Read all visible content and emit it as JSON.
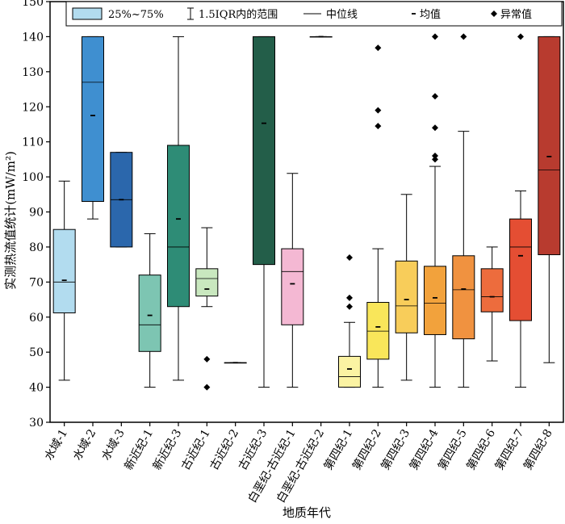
{
  "chart_data": {
    "type": "box",
    "xlabel": "地质年代",
    "ylabel": "实测热流值统计(mW/m²)",
    "ylim": [
      30,
      150
    ],
    "yticks": [
      30,
      40,
      50,
      60,
      70,
      80,
      90,
      100,
      110,
      120,
      130,
      140,
      150
    ],
    "grid": false,
    "legend": {
      "placement": "top",
      "items": [
        {
          "symbol": "box",
          "label": "25%~75%"
        },
        {
          "symbol": "whisker",
          "label": "1.5IQR内的范围"
        },
        {
          "symbol": "line",
          "label": "中位线"
        },
        {
          "symbol": "dash",
          "label": "均值"
        },
        {
          "symbol": "diamond",
          "label": "异常值"
        }
      ]
    },
    "categories": [
      {
        "name": "水域-1",
        "color": "#b2dcef",
        "q1": 61.2,
        "median": 70.0,
        "q3": 85.0,
        "whisker_low": 42.0,
        "whisker_high": 98.8,
        "mean": 70.5,
        "outliers": []
      },
      {
        "name": "水域-2",
        "color": "#3f8fd0",
        "q1": 93.0,
        "median": 127.0,
        "q3": 140.0,
        "whisker_low": 88.0,
        "whisker_high": 140.0,
        "mean": 117.5,
        "outliers": []
      },
      {
        "name": "水域-3",
        "color": "#2b67ac",
        "q1": 80.0,
        "median": 93.5,
        "q3": 107.0,
        "whisker_low": 80.0,
        "whisker_high": 107.0,
        "mean": 93.5,
        "outliers": []
      },
      {
        "name": "新近纪-1",
        "color": "#7dc5b2",
        "q1": 50.2,
        "median": 57.8,
        "q3": 72.0,
        "whisker_low": 40.0,
        "whisker_high": 83.8,
        "mean": 60.5,
        "outliers": []
      },
      {
        "name": "新近纪-3",
        "color": "#2e8c76",
        "q1": 63.0,
        "median": 80.0,
        "q3": 109.0,
        "whisker_low": 42.0,
        "whisker_high": 140.0,
        "mean": 88.0,
        "outliers": []
      },
      {
        "name": "古近纪-1",
        "color": "#c9e8bf",
        "q1": 66.0,
        "median": 71.0,
        "q3": 73.8,
        "whisker_low": 63.0,
        "whisker_high": 85.5,
        "mean": 68.0,
        "outliers": [
          48.0,
          40.0
        ]
      },
      {
        "name": "古近纪-2",
        "color": "#888888",
        "q1": 47.0,
        "median": 47.0,
        "q3": 47.0,
        "whisker_low": 47.0,
        "whisker_high": 47.0,
        "mean": 47.0,
        "outliers": []
      },
      {
        "name": "古近纪-3",
        "color": "#235e49",
        "q1": 75.0,
        "median": 140.0,
        "q3": 140.0,
        "whisker_low": 40.0,
        "whisker_high": 140.0,
        "mean": 115.3,
        "outliers": []
      },
      {
        "name": "白垩纪-古近纪-1",
        "color": "#f4b8d3",
        "q1": 57.8,
        "median": 73.0,
        "q3": 79.5,
        "whisker_low": 40.0,
        "whisker_high": 101.0,
        "mean": 69.5,
        "outliers": []
      },
      {
        "name": "白垩纪-古近纪-2",
        "color": "#888888",
        "q1": 140.0,
        "median": 140.0,
        "q3": 140.0,
        "whisker_low": 140.0,
        "whisker_high": 140.0,
        "mean": 140.0,
        "outliers": []
      },
      {
        "name": "第四纪-1",
        "color": "#fbf3a3",
        "q1": 40.0,
        "median": 43.0,
        "q3": 48.8,
        "whisker_low": 40.0,
        "whisker_high": 58.5,
        "mean": 45.2,
        "outliers": [
          77.0,
          65.5,
          63.0
        ]
      },
      {
        "name": "第四纪-2",
        "color": "#f9e65a",
        "q1": 48.0,
        "median": 56.0,
        "q3": 64.2,
        "whisker_low": 40.0,
        "whisker_high": 79.5,
        "mean": 57.2,
        "outliers": [
          136.8,
          119.0,
          114.5
        ]
      },
      {
        "name": "第四纪-3",
        "color": "#f8cd5a",
        "q1": 55.5,
        "median": 63.2,
        "q3": 76.0,
        "whisker_low": 42.0,
        "whisker_high": 95.0,
        "mean": 65.0,
        "outliers": []
      },
      {
        "name": "第四纪-4",
        "color": "#f2a23c",
        "q1": 55.0,
        "median": 64.0,
        "q3": 74.5,
        "whisker_low": 40.0,
        "whisker_high": 103.0,
        "mean": 65.5,
        "outliers": [
          140.0,
          123.0,
          114.0,
          106.0,
          105.0
        ]
      },
      {
        "name": "第四纪-5",
        "color": "#f09240",
        "q1": 53.8,
        "median": 67.8,
        "q3": 77.5,
        "whisker_low": 40.0,
        "whisker_high": 113.0,
        "mean": 68.0,
        "outliers": [
          140.0
        ]
      },
      {
        "name": "第四纪-6",
        "color": "#ed6c3d",
        "q1": 61.5,
        "median": 65.8,
        "q3": 73.8,
        "whisker_low": 47.5,
        "whisker_high": 80.0,
        "mean": 65.8,
        "outliers": []
      },
      {
        "name": "第四纪-7",
        "color": "#e44e33",
        "q1": 59.0,
        "median": 80.0,
        "q3": 88.0,
        "whisker_low": 40.0,
        "whisker_high": 96.0,
        "mean": 77.5,
        "outliers": [
          140.0
        ]
      },
      {
        "name": "第四纪-8",
        "color": "#b83b2f",
        "q1": 77.8,
        "median": 102.0,
        "q3": 140.0,
        "whisker_low": 47.0,
        "whisker_high": 140.0,
        "mean": 105.8,
        "outliers": []
      }
    ]
  }
}
